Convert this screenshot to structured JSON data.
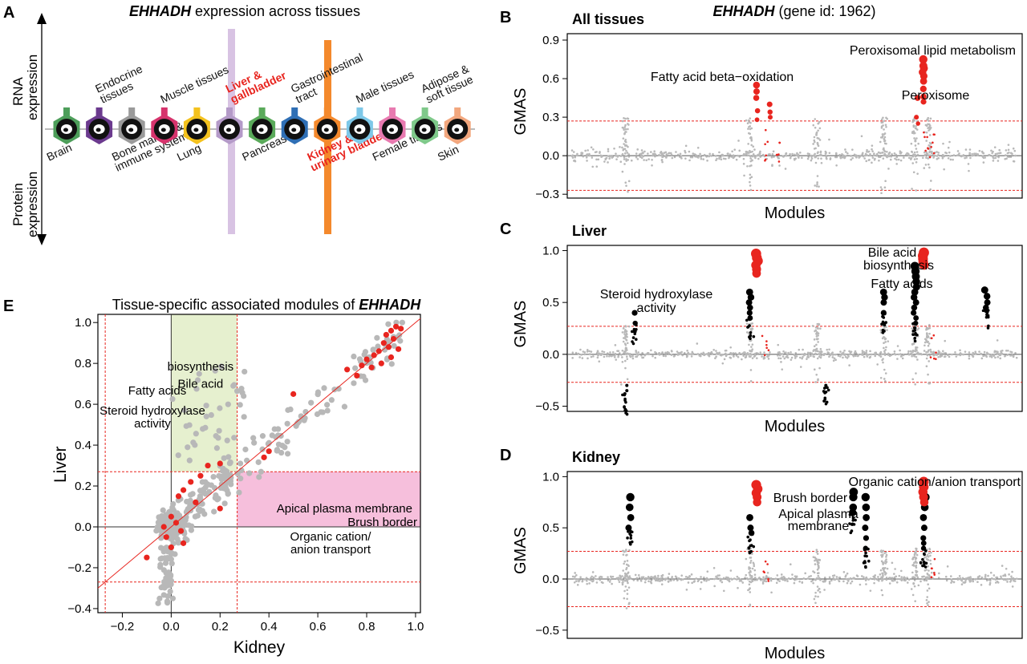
{
  "colors": {
    "sig": "#e8251f",
    "nonsig_grey": "#b8b8b8",
    "black": "#000000",
    "liver_band": "#d8c3e3",
    "kidney_band": "#f4892c",
    "green_shade": "#e6f0cf",
    "pink_shade": "#f6bfdc"
  },
  "panel_a": {
    "letter": "A",
    "title_gene": "EHHADH",
    "title_rest": " expression across tissues",
    "rna_label_1": "RNA",
    "rna_label_2": "expression",
    "protein_label_1": "Protein",
    "protein_label_2": "expression",
    "tissues": [
      {
        "name": "Brain",
        "color": "#4d9e5a",
        "pos": "below",
        "lines": [
          "Brain"
        ]
      },
      {
        "name": "Endocrine tissues",
        "color": "#6b3a8e",
        "pos": "above",
        "lines": [
          "Endocrine",
          "tissues"
        ]
      },
      {
        "name": "Bone marrow & immune system",
        "color": "#9a9a9a",
        "pos": "below",
        "lines": [
          "Bone marrow &",
          "immune system"
        ]
      },
      {
        "name": "Muscle tissues",
        "color": "#d6336c",
        "pos": "above",
        "lines": [
          "Muscle tissues"
        ]
      },
      {
        "name": "Lung",
        "color": "#f4c21e",
        "pos": "below",
        "lines": [
          "Lung"
        ]
      },
      {
        "name": "Liver & gallbladder",
        "color": "#b49ac8",
        "pos": "above",
        "lines": [
          "Liver &",
          "gallbladder"
        ],
        "highlight": true
      },
      {
        "name": "Pancreas",
        "color": "#5aaa5a",
        "pos": "below",
        "lines": [
          "Pancreas"
        ]
      },
      {
        "name": "Gastrointestinal tract",
        "color": "#2f6fb5",
        "pos": "above",
        "lines": [
          "Gastrointestinal",
          "tract"
        ]
      },
      {
        "name": "Kidney & urinary bladder",
        "color": "#f4892c",
        "pos": "below",
        "lines": [
          "Kidney &",
          "urinary bladder"
        ],
        "highlight": true
      },
      {
        "name": "Male tissues",
        "color": "#7ec8e8",
        "pos": "above",
        "lines": [
          "Male tissues"
        ]
      },
      {
        "name": "Female tissues",
        "color": "#e87ab0",
        "pos": "below",
        "lines": [
          "Female tissues"
        ]
      },
      {
        "name": "Adipose & soft tissue",
        "color": "#7fc98a",
        "pos": "above",
        "lines": [
          "Adipose &",
          "soft tissue"
        ]
      },
      {
        "name": "Skin",
        "color": "#f2a77e",
        "pos": "below",
        "lines": [
          "Skin"
        ]
      }
    ]
  },
  "chart_data": [
    {
      "id": "B",
      "type": "scatter",
      "letter": "B",
      "title": "All tissues",
      "header_gene": "EHHADH",
      "header_rest": " (gene id: 1962)",
      "xlabel": "Modules",
      "ylabel": "GMAS",
      "ylim": [
        -0.33,
        0.95
      ],
      "yticks": [
        "0.9",
        "0.6",
        "0.3",
        "0.0",
        "−0.3"
      ],
      "ytick_values": [
        0.9,
        0.6,
        0.3,
        0.0,
        -0.3
      ],
      "threshold": 0.27,
      "annotations": [
        "Peroxisomal lipid metabolism",
        "Fatty acid beta−oxidation",
        "Peroxisome"
      ],
      "significant_modules": [
        {
          "module": 0.415,
          "values": [
            0.55,
            0.5,
            0.45,
            0.35,
            0.28
          ]
        },
        {
          "module": 0.445,
          "values": [
            0.4,
            0.34,
            0.3
          ]
        },
        {
          "module": 0.79,
          "values": [
            0.75,
            0.7,
            0.68,
            0.65,
            0.62,
            0.58,
            0.52,
            0.46,
            0.42
          ]
        },
        {
          "module": 0.775,
          "values": [
            0.45,
            0.3,
            0.25
          ]
        }
      ]
    },
    {
      "id": "C",
      "type": "scatter",
      "letter": "C",
      "title": "Liver",
      "xlabel": "Modules",
      "ylabel": "GMAS",
      "ylim": [
        -0.55,
        1.05
      ],
      "yticks": [
        "1.0",
        "0.5",
        "0.0",
        "−0.5"
      ],
      "ytick_values": [
        1.0,
        0.5,
        0.0,
        -0.5
      ],
      "threshold": 0.27,
      "annotations": [
        "Steroid hydroxylase",
        "activity",
        "Bile acid",
        "biosynthesis",
        "Fatty acids"
      ],
      "significant_modules": [
        {
          "module": 0.415,
          "values": [
            0.97,
            0.93,
            0.9,
            0.86,
            0.82,
            0.78
          ]
        },
        {
          "module": 0.79,
          "values": [
            0.98,
            0.95,
            0.92,
            0.89,
            0.86
          ]
        }
      ],
      "black_modules": [
        {
          "module": 0.12,
          "values": [
            -0.3,
            -0.35,
            -0.38
          ]
        },
        {
          "module": 0.14,
          "values": [
            0.4,
            0.3
          ]
        },
        {
          "module": 0.4,
          "values": [
            0.6,
            0.55,
            0.5,
            0.45,
            0.4,
            0.35
          ]
        },
        {
          "module": 0.57,
          "values": [
            -0.3
          ]
        },
        {
          "module": 0.7,
          "values": [
            0.6,
            0.55,
            0.5,
            0.4
          ]
        },
        {
          "module": 0.77,
          "values": [
            0.85,
            0.8,
            0.75,
            0.7,
            0.65,
            0.6,
            0.55,
            0.5,
            0.45,
            0.4,
            0.35,
            0.3
          ]
        },
        {
          "module": 0.93,
          "values": [
            0.62,
            0.56,
            0.5,
            0.45
          ]
        }
      ]
    },
    {
      "id": "D",
      "type": "scatter",
      "letter": "D",
      "title": "Kidney",
      "xlabel": "Modules",
      "ylabel": "GMAS",
      "ylim": [
        -0.58,
        1.05
      ],
      "yticks": [
        "1.0",
        "0.5",
        "0.0",
        "−0.5"
      ],
      "ytick_values": [
        1.0,
        0.5,
        0.0,
        -0.5
      ],
      "threshold": 0.27,
      "annotations": [
        "Organic cation/anion transport",
        "Brush border",
        "Apical plasma",
        "membrane"
      ],
      "significant_modules": [
        {
          "module": 0.415,
          "values": [
            0.92,
            0.88,
            0.84,
            0.8,
            0.75
          ]
        },
        {
          "module": 0.79,
          "values": [
            0.95,
            0.9,
            0.85,
            0.8,
            0.75
          ]
        }
      ],
      "black_modules": [
        {
          "module": 0.13,
          "values": [
            0.8,
            0.7,
            0.6,
            0.5
          ]
        },
        {
          "module": 0.4,
          "values": [
            0.6,
            0.5,
            0.45
          ]
        },
        {
          "module": 0.63,
          "values": [
            0.85,
            0.8,
            0.7,
            0.65
          ]
        },
        {
          "module": 0.66,
          "values": [
            0.8,
            0.7,
            0.6,
            0.5,
            0.4,
            0.3
          ]
        },
        {
          "module": 0.79,
          "values": [
            0.9,
            0.8,
            0.7,
            0.6,
            0.5,
            0.4,
            0.35,
            0.3
          ]
        }
      ]
    },
    {
      "id": "E",
      "type": "scatter",
      "letter": "E",
      "title_prefix": "Tissue-specific associated modules of ",
      "title_gene": "EHHADH",
      "xlabel": "Kidney",
      "ylabel": "Liver",
      "xlim": [
        -0.3,
        1.02
      ],
      "ylim": [
        -0.42,
        1.04
      ],
      "xticks": [
        "−0.2",
        "0.0",
        "0.2",
        "0.4",
        "0.6",
        "0.8",
        "1.0"
      ],
      "xtick_values": [
        -0.2,
        0.0,
        0.2,
        0.4,
        0.6,
        0.8,
        1.0
      ],
      "yticks": [
        "1.0",
        "0.8",
        "0.6",
        "0.4",
        "0.2",
        "0.0",
        "−0.2",
        "−0.4"
      ],
      "ytick_values": [
        1.0,
        0.8,
        0.6,
        0.4,
        0.2,
        0.0,
        -0.2,
        -0.4
      ],
      "threshold": 0.27,
      "annotations": [
        "Bile acid",
        "biosynthesis",
        "Fatty acids",
        "Steroid hydroxylase",
        "activity",
        "Apical plasma membrane",
        "Brush border",
        "Organic cation/",
        "anion transport"
      ],
      "red_points": [
        [
          0.92,
          0.98
        ],
        [
          0.94,
          0.97
        ],
        [
          0.9,
          0.96
        ],
        [
          0.88,
          0.94
        ],
        [
          0.91,
          0.92
        ],
        [
          0.87,
          0.9
        ],
        [
          0.89,
          0.88
        ],
        [
          0.93,
          0.87
        ],
        [
          0.85,
          0.86
        ],
        [
          0.83,
          0.84
        ],
        [
          0.9,
          0.83
        ],
        [
          0.8,
          0.82
        ],
        [
          0.86,
          0.8
        ],
        [
          0.78,
          0.79
        ],
        [
          0.82,
          0.78
        ],
        [
          0.72,
          0.77
        ],
        [
          0.76,
          0.74
        ],
        [
          0.5,
          0.65
        ],
        [
          0.4,
          0.37
        ],
        [
          0.38,
          0.34
        ],
        [
          0.2,
          0.31
        ],
        [
          0.15,
          0.3
        ],
        [
          0.12,
          0.25
        ],
        [
          0.08,
          0.22
        ],
        [
          0.05,
          0.18
        ],
        [
          0.03,
          0.15
        ],
        [
          0.1,
          0.12
        ],
        [
          0.2,
          0.09
        ],
        [
          0.0,
          0.05
        ],
        [
          0.02,
          0.02
        ],
        [
          0.04,
          -0.02
        ],
        [
          -0.02,
          -0.05
        ],
        [
          0.05,
          -0.08
        ],
        [
          -0.1,
          -0.15
        ],
        [
          0.0,
          -0.1
        ],
        [
          -0.03,
          0.0
        ]
      ],
      "grey_points_n": 420
    }
  ]
}
